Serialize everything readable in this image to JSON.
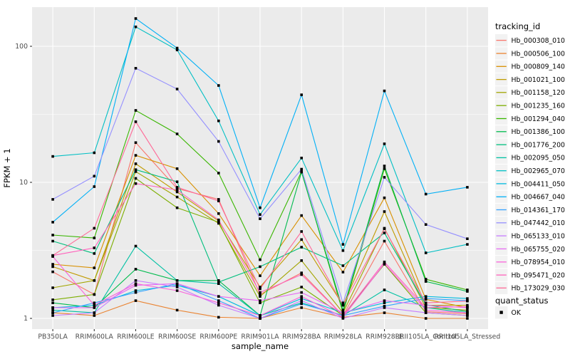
{
  "figure": {
    "panel_bg": "#EBEBEB",
    "grid_color": "#FFFFFF",
    "tick_color": "#333333",
    "axis_text_color": "#4D4D4D",
    "point_color": "#000000",
    "legend_key_bg": "#F2F2F2"
  },
  "chart_data": {
    "type": "line",
    "title": "",
    "xlabel": "sample_name",
    "ylabel": "FPKM + 1",
    "y_scale": "log10",
    "y_ticks": [
      1,
      10,
      100
    ],
    "y_tick_labels": [
      "1",
      "10",
      "100"
    ],
    "y_minor_ticks": [
      3.1623,
      31.623
    ],
    "ylim": [
      0.84,
      195
    ],
    "grid": true,
    "legend": {
      "title": "tracking_id",
      "position": "right"
    },
    "legend2": {
      "title": "quant_status",
      "items": [
        {
          "label": "OK",
          "shape": "filled-square",
          "color": "#000000"
        }
      ]
    },
    "categories": [
      "PB350LA",
      "RRIM600LA",
      "RRIM600LE",
      "RRIM600SE",
      "RRIM600PE",
      "RRIM901LA",
      "RRIM928BA",
      "RRIM928LA",
      "RRIM928LE",
      "RRII105LA_Control",
      "RRII105LA_Stressed"
    ],
    "series": [
      {
        "name": "Hb_000308_010",
        "color": "#F8766D",
        "values": [
          2.2,
          1.5,
          19.6,
          9.0,
          7.5,
          1.5,
          2.16,
          1.05,
          3.7,
          1.12,
          1.08
        ]
      },
      {
        "name": "Hb_000506_100",
        "color": "#EA8331",
        "values": [
          1.1,
          1.05,
          1.35,
          1.15,
          1.02,
          1.0,
          1.2,
          1.02,
          1.1,
          1.0,
          1.0
        ]
      },
      {
        "name": "Hb_000809_140",
        "color": "#D89000",
        "values": [
          2.5,
          2.35,
          15.8,
          12.6,
          5.9,
          2.06,
          5.7,
          2.19,
          7.7,
          1.38,
          1.2
        ]
      },
      {
        "name": "Hb_001021_100",
        "color": "#C09B00",
        "values": [
          2.4,
          1.9,
          13.7,
          8.5,
          5.2,
          1.7,
          3.8,
          1.25,
          6.1,
          1.25,
          1.25
        ]
      },
      {
        "name": "Hb_001158_120",
        "color": "#A3A500",
        "values": [
          1.68,
          1.9,
          12.0,
          7.8,
          5.0,
          1.45,
          2.66,
          1.1,
          4.6,
          1.2,
          1.15
        ]
      },
      {
        "name": "Hb_001235_160",
        "color": "#7CAE00",
        "values": [
          1.37,
          1.5,
          10.7,
          6.5,
          5.1,
          1.3,
          1.7,
          1.05,
          2.5,
          1.1,
          1.05
        ]
      },
      {
        "name": "Hb_001294_040",
        "color": "#39B600",
        "values": [
          4.1,
          3.9,
          33.8,
          22.7,
          11.7,
          2.7,
          12.0,
          1.1,
          12.6,
          1.94,
          1.62
        ]
      },
      {
        "name": "Hb_001386_100",
        "color": "#00BB4E",
        "values": [
          1.3,
          1.2,
          2.3,
          1.9,
          1.9,
          1.05,
          11.9,
          1.15,
          13.2,
          1.87,
          1.58
        ]
      },
      {
        "name": "Hb_001776_200",
        "color": "#00BF7D",
        "values": [
          3.7,
          3.0,
          12.4,
          10.1,
          1.85,
          2.4,
          3.34,
          2.44,
          4.25,
          1.26,
          1.12
        ]
      },
      {
        "name": "Hb_002095_050",
        "color": "#00C1A3",
        "values": [
          1.15,
          1.1,
          3.4,
          1.9,
          1.8,
          1.05,
          1.3,
          1.05,
          1.62,
          1.2,
          1.1
        ]
      },
      {
        "name": "Hb_002965_070",
        "color": "#00BFC4",
        "values": [
          15.5,
          16.5,
          139,
          94,
          28.3,
          5.8,
          15.1,
          3.15,
          19.2,
          3.03,
          3.5
        ]
      },
      {
        "name": "Hb_004411_050",
        "color": "#00BAE0",
        "values": [
          1.2,
          1.25,
          1.6,
          1.75,
          1.45,
          1.05,
          1.4,
          1.1,
          1.3,
          1.45,
          1.4
        ]
      },
      {
        "name": "Hb_004667_040",
        "color": "#00B0F6",
        "values": [
          5.1,
          9.3,
          160,
          97,
          51.5,
          6.5,
          44,
          3.5,
          47,
          8.2,
          9.2
        ]
      },
      {
        "name": "Hb_014361_170",
        "color": "#35A2FF",
        "values": [
          1.1,
          1.3,
          1.55,
          1.8,
          1.35,
          1.0,
          1.28,
          1.05,
          1.23,
          1.4,
          1.35
        ]
      },
      {
        "name": "Hb_047442_010",
        "color": "#9590FF",
        "values": [
          7.5,
          11.1,
          69,
          48.5,
          20,
          5.4,
          12.5,
          1.3,
          10.9,
          4.9,
          3.85
        ]
      },
      {
        "name": "Hb_065133_010",
        "color": "#C77CFF",
        "values": [
          1.05,
          1.1,
          1.9,
          1.7,
          1.25,
          1.0,
          1.35,
          1.0,
          1.2,
          1.1,
          1.05
        ]
      },
      {
        "name": "Hb_065755_020",
        "color": "#E76BF3",
        "values": [
          1.2,
          1.2,
          1.75,
          1.8,
          1.45,
          1.35,
          1.55,
          1.1,
          1.35,
          1.25,
          1.2
        ]
      },
      {
        "name": "Hb_078954_010",
        "color": "#FA62DB",
        "values": [
          2.85,
          1.25,
          1.8,
          1.6,
          1.3,
          1.05,
          1.45,
          1.02,
          2.53,
          1.15,
          1.1
        ]
      },
      {
        "name": "Hb_095471_020",
        "color": "#FF62BC",
        "values": [
          2.9,
          3.3,
          9.8,
          8.8,
          5.3,
          1.55,
          2.1,
          1.05,
          2.6,
          1.2,
          1.22
        ]
      },
      {
        "name": "Hb_173029_030",
        "color": "#FF6A98",
        "values": [
          2.9,
          4.6,
          27.9,
          9.2,
          7.3,
          1.65,
          4.35,
          1.25,
          4.55,
          1.3,
          1.34
        ]
      }
    ]
  }
}
